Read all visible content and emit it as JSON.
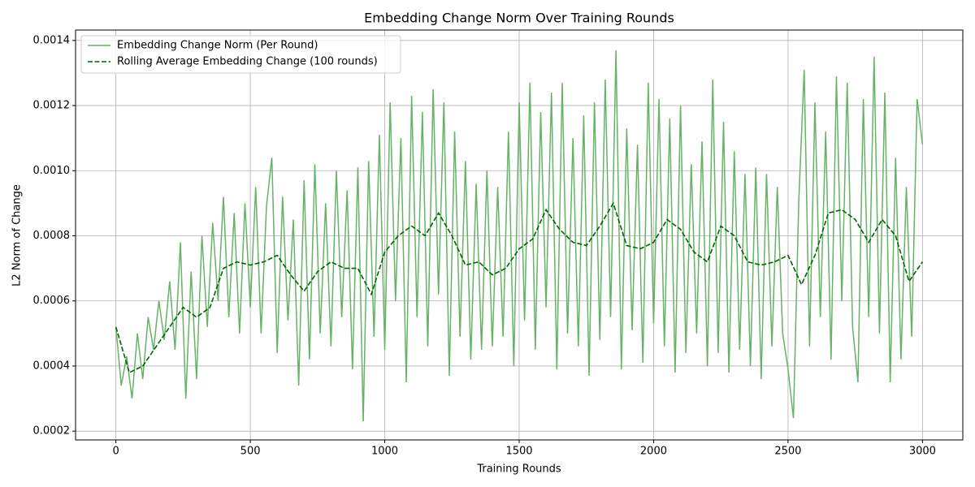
{
  "chart_data": {
    "type": "line",
    "title": "Embedding Change Norm Over Training Rounds",
    "xlabel": "Training Rounds",
    "ylabel": "L2 Norm of Change",
    "xlim": [
      -150,
      3150
    ],
    "xticks": [
      0,
      500,
      1000,
      1500,
      2000,
      2500,
      3000
    ],
    "ylim": [
      0.000173,
      0.001432
    ],
    "yticks": [
      0.0002,
      0.0004,
      0.0006,
      0.0008,
      {
        "value": 0.001,
        "label": "0.0010"
      },
      0.0012,
      0.0014
    ],
    "grid": true,
    "legend": "upper left",
    "series": [
      {
        "name": "Embedding Change Norm (Per Round)",
        "color": "#66b266",
        "dash": false,
        "x": [
          0,
          20,
          40,
          60,
          80,
          100,
          120,
          140,
          160,
          180,
          200,
          220,
          240,
          260,
          280,
          300,
          320,
          340,
          360,
          380,
          400,
          420,
          440,
          460,
          480,
          500,
          520,
          540,
          560,
          580,
          600,
          620,
          640,
          660,
          680,
          700,
          720,
          740,
          760,
          780,
          800,
          820,
          840,
          860,
          880,
          900,
          920,
          940,
          960,
          980,
          1000,
          1020,
          1040,
          1060,
          1080,
          1100,
          1120,
          1140,
          1160,
          1180,
          1200,
          1220,
          1240,
          1260,
          1280,
          1300,
          1320,
          1340,
          1360,
          1380,
          1400,
          1420,
          1440,
          1460,
          1480,
          1500,
          1520,
          1540,
          1560,
          1580,
          1600,
          1620,
          1640,
          1660,
          1680,
          1700,
          1720,
          1740,
          1760,
          1780,
          1800,
          1820,
          1840,
          1860,
          1880,
          1900,
          1920,
          1940,
          1960,
          1980,
          2000,
          2020,
          2040,
          2060,
          2080,
          2100,
          2120,
          2140,
          2160,
          2180,
          2200,
          2220,
          2240,
          2260,
          2280,
          2300,
          2320,
          2340,
          2360,
          2380,
          2400,
          2420,
          2440,
          2460,
          2480,
          2500,
          2520,
          2540,
          2560,
          2580,
          2600,
          2620,
          2640,
          2660,
          2680,
          2700,
          2720,
          2740,
          2760,
          2780,
          2800,
          2820,
          2840,
          2860,
          2880,
          2900,
          2920,
          2940,
          2960,
          2980,
          3000
        ],
        "values": [
          0.00052,
          0.00034,
          0.00043,
          0.0003,
          0.0005,
          0.00036,
          0.00055,
          0.00045,
          0.0006,
          0.00048,
          0.00066,
          0.00045,
          0.00078,
          0.0003,
          0.00069,
          0.00036,
          0.0008,
          0.00052,
          0.00084,
          0.0006,
          0.00092,
          0.00055,
          0.00087,
          0.0005,
          0.0009,
          0.00058,
          0.00095,
          0.0005,
          0.00089,
          0.00104,
          0.00044,
          0.00092,
          0.00054,
          0.00085,
          0.00034,
          0.00097,
          0.00042,
          0.00102,
          0.0005,
          0.0009,
          0.00046,
          0.001,
          0.00055,
          0.00094,
          0.00039,
          0.00101,
          0.00023,
          0.00103,
          0.00049,
          0.00111,
          0.00045,
          0.00121,
          0.0006,
          0.0011,
          0.00035,
          0.00123,
          0.00055,
          0.00118,
          0.00046,
          0.00125,
          0.00062,
          0.00121,
          0.00037,
          0.00112,
          0.00049,
          0.00103,
          0.00042,
          0.00096,
          0.00045,
          0.001,
          0.00046,
          0.00095,
          0.00049,
          0.00112,
          0.0004,
          0.00121,
          0.00054,
          0.00127,
          0.00045,
          0.00118,
          0.00058,
          0.00124,
          0.00039,
          0.00127,
          0.0005,
          0.0011,
          0.00046,
          0.00117,
          0.00037,
          0.00121,
          0.00048,
          0.00128,
          0.00055,
          0.00137,
          0.00039,
          0.00113,
          0.00051,
          0.00108,
          0.00041,
          0.00127,
          0.00053,
          0.00122,
          0.00046,
          0.00116,
          0.00038,
          0.0012,
          0.00044,
          0.00102,
          0.0005,
          0.00109,
          0.0004,
          0.00128,
          0.00044,
          0.00115,
          0.00038,
          0.00106,
          0.00045,
          0.00099,
          0.0004,
          0.00101,
          0.00036,
          0.00099,
          0.00046,
          0.00095,
          0.0005,
          0.00039,
          0.00024,
          0.00091,
          0.00131,
          0.00046,
          0.00121,
          0.00055,
          0.00112,
          0.00042,
          0.00129,
          0.0006,
          0.00127,
          0.00052,
          0.00035,
          0.00122,
          0.00055,
          0.00135,
          0.0005,
          0.00124,
          0.00035,
          0.00104,
          0.00042,
          0.00095,
          0.00049,
          0.00122,
          0.00108
        ]
      },
      {
        "name": "Rolling Average Embedding Change (100 rounds)",
        "color": "#006400",
        "dash": true,
        "x": [
          0,
          50,
          100,
          150,
          200,
          250,
          300,
          350,
          400,
          450,
          500,
          550,
          600,
          650,
          700,
          750,
          800,
          850,
          900,
          950,
          1000,
          1050,
          1100,
          1150,
          1200,
          1250,
          1300,
          1350,
          1400,
          1450,
          1500,
          1550,
          1600,
          1650,
          1700,
          1750,
          1800,
          1850,
          1900,
          1950,
          2000,
          2050,
          2100,
          2150,
          2200,
          2250,
          2300,
          2350,
          2400,
          2450,
          2500,
          2550,
          2600,
          2650,
          2700,
          2750,
          2800,
          2850,
          2900,
          2950,
          3000
        ],
        "values": [
          0.00052,
          0.00038,
          0.0004,
          0.00046,
          0.00052,
          0.00058,
          0.00055,
          0.00058,
          0.0007,
          0.00072,
          0.00071,
          0.00072,
          0.00074,
          0.00068,
          0.00063,
          0.00069,
          0.00072,
          0.0007,
          0.0007,
          0.00062,
          0.00075,
          0.0008,
          0.00083,
          0.0008,
          0.00087,
          0.0008,
          0.00071,
          0.00072,
          0.00068,
          0.0007,
          0.00076,
          0.00079,
          0.00088,
          0.00082,
          0.00078,
          0.00077,
          0.00083,
          0.0009,
          0.00077,
          0.00076,
          0.00078,
          0.00085,
          0.00082,
          0.00075,
          0.00072,
          0.00083,
          0.0008,
          0.00072,
          0.00071,
          0.00072,
          0.00074,
          0.00065,
          0.00074,
          0.00087,
          0.00088,
          0.00085,
          0.00078,
          0.00085,
          0.0008,
          0.00066,
          0.00072
        ]
      }
    ]
  }
}
